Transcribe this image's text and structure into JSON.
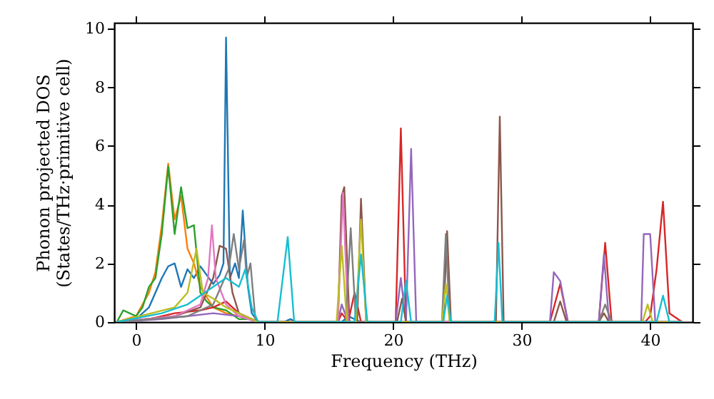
{
  "chart_data": {
    "type": "line",
    "xlabel": "Frequency (THz)",
    "ylabel": "Phonon projected DOS\n(States/THz·primitive cell)",
    "xlim": [
      -1.7,
      43.3
    ],
    "ylim": [
      0,
      10.2
    ],
    "xticks": [
      0,
      10,
      20,
      30,
      40
    ],
    "yticks": [
      0,
      2,
      4,
      6,
      8,
      10
    ],
    "grid": false,
    "line_style": "solid",
    "marker": "none",
    "series": [
      {
        "color": "#1f77b4",
        "x": [
          -1.5,
          0,
          1,
          2,
          2.5,
          3,
          3.5,
          4,
          4.5,
          5,
          5.5,
          6,
          6.5,
          6.8,
          7,
          7.3,
          7.7,
          8,
          8.3,
          8.7,
          9,
          9.5,
          11.5,
          12,
          12.5,
          16,
          16.5,
          17,
          17.5,
          42.5
        ],
        "values": [
          0,
          0.1,
          0.5,
          1.5,
          1.9,
          2.0,
          1.2,
          1.8,
          1.5,
          1.9,
          1.6,
          1.3,
          1.6,
          2.0,
          9.7,
          1.5,
          2.0,
          1.5,
          3.8,
          1.2,
          0.3,
          0,
          0,
          0.1,
          0,
          0,
          0.2,
          0.1,
          0,
          0
        ]
      },
      {
        "color": "#ff7f0e",
        "x": [
          -1.5,
          0,
          1,
          1.5,
          2,
          2.5,
          3,
          3.5,
          4,
          4.5,
          5,
          6,
          7,
          8,
          9
        ],
        "values": [
          0,
          0.2,
          1.0,
          1.7,
          3.3,
          5.4,
          3.5,
          4.3,
          2.5,
          2.0,
          1.2,
          0.5,
          0.3,
          0.2,
          0.1
        ]
      },
      {
        "color": "#2ca02c",
        "x": [
          -1.5,
          -1,
          -0.5,
          0,
          0.5,
          1,
          1.5,
          2,
          2.5,
          3,
          3.5,
          4,
          4.5,
          5,
          5.5,
          6,
          7,
          8,
          9,
          9.5,
          42.5
        ],
        "values": [
          0,
          0.4,
          0.3,
          0.2,
          0.5,
          1.2,
          1.5,
          3.0,
          5.3,
          3.0,
          4.6,
          3.2,
          3.3,
          1.0,
          0.7,
          0.5,
          0.4,
          0.1,
          0.1,
          0,
          0
        ]
      },
      {
        "color": "#d62728",
        "x": [
          -1.5,
          1,
          3,
          5,
          6,
          7,
          8,
          9,
          9.5,
          15.7,
          16,
          16.5,
          17,
          17.5,
          20.2,
          20.6,
          21,
          32.2,
          33,
          33.6,
          36,
          36.5,
          37,
          39.6,
          40,
          40.5,
          41,
          41.5,
          42.5
        ],
        "values": [
          0,
          0.1,
          0.3,
          0.4,
          0.5,
          0.7,
          0.3,
          0.1,
          0,
          0,
          0.3,
          0,
          1.0,
          0,
          0,
          6.6,
          0,
          0,
          1.3,
          0,
          0,
          2.7,
          0,
          0,
          0.2,
          1.8,
          4.1,
          0.3,
          0
        ]
      },
      {
        "color": "#9467bd",
        "x": [
          -1.5,
          2,
          4,
          6,
          8,
          9.5,
          15.7,
          16,
          16.5,
          20.2,
          20.6,
          21,
          21.4,
          21.8,
          32.2,
          32.5,
          33,
          33.6,
          36,
          36.4,
          36.8,
          39.3,
          39.5,
          40,
          40.4,
          42.5
        ],
        "values": [
          0,
          0.1,
          0.2,
          0.3,
          0.2,
          0,
          0,
          0.6,
          0,
          0,
          1.5,
          0,
          5.9,
          0,
          0,
          1.7,
          1.4,
          0,
          0,
          2.3,
          0,
          0,
          3.0,
          3.0,
          0,
          0
        ]
      },
      {
        "color": "#8c564b",
        "x": [
          -1.5,
          3,
          5,
          6,
          6.5,
          7,
          7.5,
          8,
          9.5,
          15.7,
          16,
          16.2,
          16.6,
          17.2,
          17.5,
          17.9,
          20.3,
          20.7,
          21,
          23.9,
          24.2,
          24.5,
          28,
          28.3,
          28.6,
          32.5,
          33,
          33.5,
          36,
          36.4,
          36.8,
          42.5
        ],
        "values": [
          0,
          0.2,
          0.5,
          1.5,
          2.6,
          2.5,
          1.0,
          0.3,
          0,
          0,
          4.3,
          4.6,
          0,
          0,
          4.2,
          0,
          0,
          0.8,
          0,
          0,
          3.1,
          0,
          0,
          7.0,
          0,
          0,
          0.7,
          0,
          0,
          0.3,
          0,
          0
        ]
      },
      {
        "color": "#e377c2",
        "x": [
          -1.5,
          3,
          5,
          5.6,
          5.9,
          6.2,
          7,
          8,
          9.5,
          15.7,
          16.1,
          16.5,
          42.5
        ],
        "values": [
          0,
          0.2,
          0.6,
          1.5,
          3.3,
          1.5,
          0.6,
          0.2,
          0,
          0,
          4.4,
          0,
          0
        ]
      },
      {
        "color": "#7f7f7f",
        "x": [
          -1.5,
          4,
          6,
          7.2,
          7.6,
          8,
          8.4,
          8.6,
          8.9,
          9.3,
          16.3,
          16.7,
          17.1,
          23.8,
          24.1,
          24.4,
          36,
          36.5,
          37,
          42.5
        ],
        "values": [
          0,
          0.2,
          0.6,
          1.8,
          3.0,
          1.8,
          2.8,
          1.5,
          2.0,
          0,
          0,
          3.2,
          0,
          0,
          3.0,
          0,
          0,
          0.6,
          0,
          0
        ]
      },
      {
        "color": "#bcbd22",
        "x": [
          -1.5,
          3,
          4,
          4.7,
          5.2,
          6,
          7,
          8,
          9.5,
          15.6,
          16,
          16.4,
          17.1,
          17.5,
          17.9,
          23.8,
          24.1,
          24.4,
          39.4,
          39.8,
          40.2,
          42.5
        ],
        "values": [
          0,
          0.5,
          1.0,
          2.5,
          1.0,
          0.8,
          0.5,
          0.3,
          0,
          0,
          2.6,
          0,
          0,
          3.5,
          0,
          0,
          1.3,
          0,
          0,
          0.6,
          0,
          0
        ]
      },
      {
        "color": "#17becf",
        "x": [
          -1.5,
          2,
          4,
          6,
          7,
          8,
          8.5,
          9,
          9.5,
          11,
          11.8,
          12.3,
          17,
          17.5,
          18,
          20.6,
          21,
          21.4,
          23.9,
          24.2,
          24.5,
          27.9,
          28.2,
          28.5,
          40.5,
          41,
          41.5,
          42.5
        ],
        "values": [
          0,
          0.3,
          0.6,
          1.2,
          1.5,
          1.2,
          1.8,
          0.5,
          0,
          0,
          2.9,
          0,
          0,
          2.3,
          0,
          0,
          1.4,
          0,
          0,
          0.9,
          0,
          0,
          2.7,
          0,
          0,
          0.9,
          0,
          0
        ]
      }
    ]
  }
}
